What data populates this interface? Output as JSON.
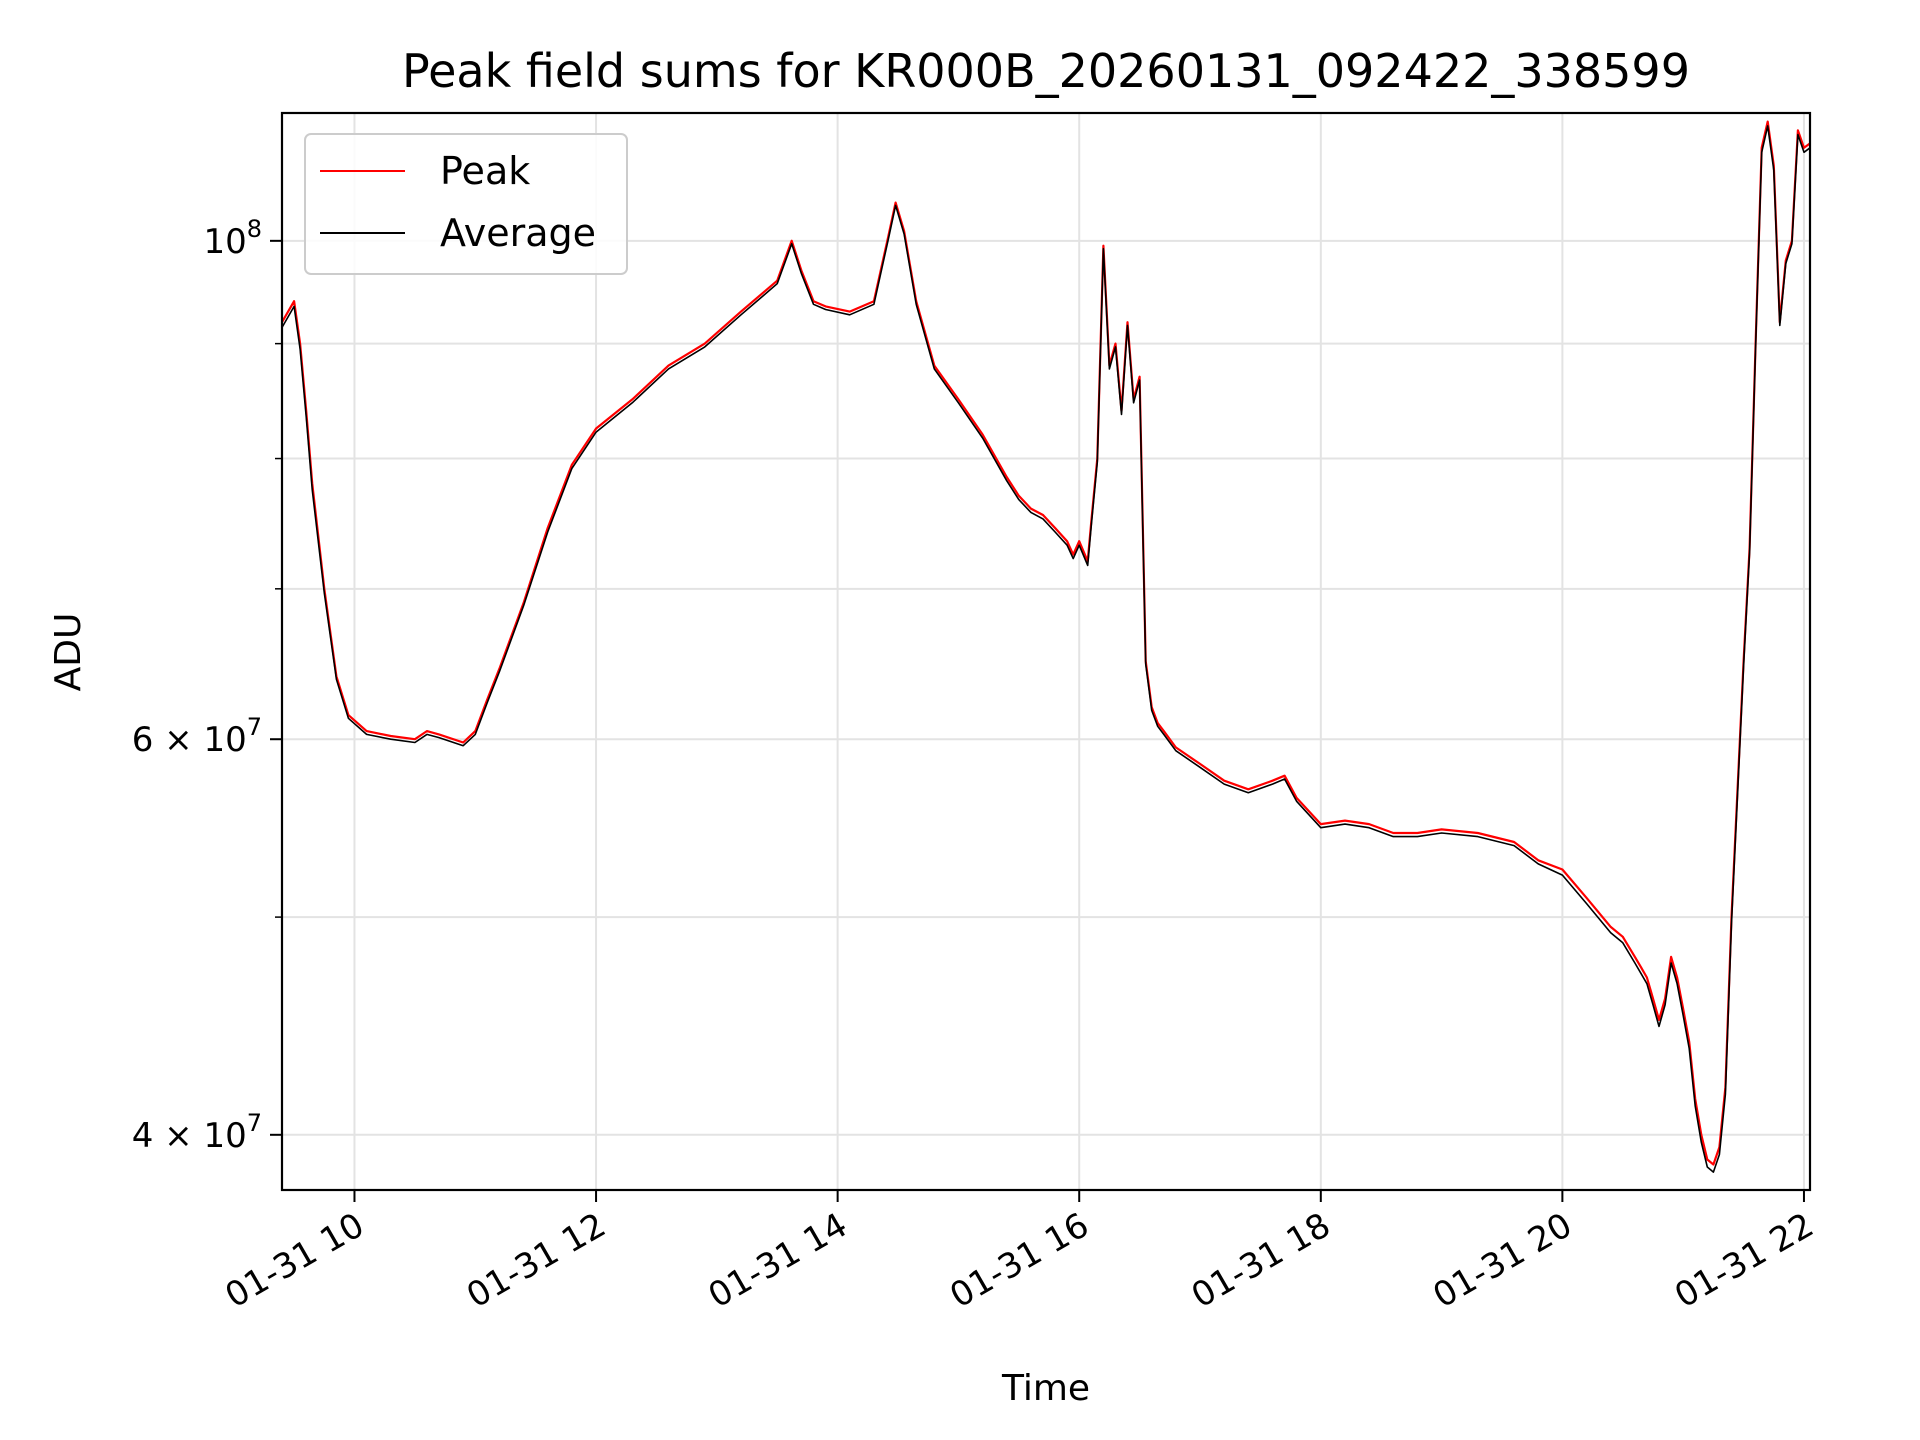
{
  "chart_data": {
    "type": "line",
    "title": "Peak field sums for KR000B_20260131_092422_338599",
    "xlabel": "Time",
    "ylabel": "ADU",
    "yscale": "log",
    "xlim": [
      9.4,
      22.05
    ],
    "ylim": [
      37800000,
      114000000
    ],
    "x_ticks": [
      {
        "value": 10,
        "label": "01-31 10"
      },
      {
        "value": 12,
        "label": "01-31 12"
      },
      {
        "value": 14,
        "label": "01-31 14"
      },
      {
        "value": 16,
        "label": "01-31 16"
      },
      {
        "value": 18,
        "label": "01-31 18"
      },
      {
        "value": 20,
        "label": "01-31 20"
      },
      {
        "value": 22,
        "label": "01-31 22"
      }
    ],
    "y_major_ticks": [
      {
        "value": 40000000,
        "base": "4 × 10",
        "exp": "7"
      },
      {
        "value": 60000000,
        "base": "6 × 10",
        "exp": "7"
      },
      {
        "value": 100000000,
        "base": "10",
        "exp": "8"
      }
    ],
    "y_minor_ticks": [
      50000000,
      70000000,
      80000000,
      90000000
    ],
    "legend": {
      "position": "upper-left",
      "entries": [
        "Peak",
        "Average"
      ]
    },
    "grid": true,
    "series": [
      {
        "name": "Peak",
        "color": "#ff0000",
        "x": [
          9.4,
          9.5,
          9.55,
          9.6,
          9.65,
          9.75,
          9.85,
          9.95,
          10.1,
          10.3,
          10.5,
          10.6,
          10.7,
          10.9,
          11.0,
          11.1,
          11.2,
          11.4,
          11.6,
          11.8,
          12.0,
          12.3,
          12.6,
          12.9,
          13.2,
          13.5,
          13.62,
          13.7,
          13.8,
          13.9,
          14.1,
          14.3,
          14.42,
          14.48,
          14.55,
          14.65,
          14.8,
          15.0,
          15.2,
          15.4,
          15.5,
          15.6,
          15.7,
          15.8,
          15.9,
          15.95,
          16.0,
          16.07,
          16.1,
          16.15,
          16.2,
          16.25,
          16.3,
          16.35,
          16.4,
          16.45,
          16.5,
          16.55,
          16.6,
          16.65,
          16.7,
          16.8,
          17.0,
          17.2,
          17.4,
          17.6,
          17.7,
          17.8,
          18.0,
          18.2,
          18.4,
          18.6,
          18.8,
          19.0,
          19.3,
          19.6,
          19.8,
          20.0,
          20.2,
          20.4,
          20.5,
          20.6,
          20.65,
          20.7,
          20.75,
          20.8,
          20.85,
          20.9,
          20.95,
          21.0,
          21.05,
          21.1,
          21.15,
          21.2,
          21.25,
          21.3,
          21.35,
          21.4,
          21.5,
          21.55,
          21.6,
          21.65,
          21.7,
          21.75,
          21.8,
          21.85,
          21.9,
          21.95,
          22.0,
          22.05
        ],
        "y": [
          92000000,
          94000000,
          90000000,
          84000000,
          78000000,
          70000000,
          64000000,
          61500000,
          60500000,
          60200000,
          60000000,
          60500000,
          60300000,
          59800000,
          60500000,
          62500000,
          64500000,
          69000000,
          74500000,
          79500000,
          82500000,
          85000000,
          88000000,
          90000000,
          93000000,
          96000000,
          100000000,
          97000000,
          94000000,
          93500000,
          93000000,
          94000000,
          100500000,
          104000000,
          101000000,
          94000000,
          88000000,
          85000000,
          82000000,
          78500000,
          77000000,
          76000000,
          75500000,
          74500000,
          73500000,
          72500000,
          73500000,
          72000000,
          75000000,
          80000000,
          99500000,
          88000000,
          90000000,
          84000000,
          92000000,
          85000000,
          87000000,
          65000000,
          62000000,
          61000000,
          60500000,
          59500000,
          58500000,
          57500000,
          57000000,
          57500000,
          57800000,
          56500000,
          55000000,
          55200000,
          55000000,
          54500000,
          54500000,
          54700000,
          54500000,
          54000000,
          53000000,
          52500000,
          51000000,
          49500000,
          49000000,
          48000000,
          47500000,
          47000000,
          46000000,
          45000000,
          46000000,
          48000000,
          47000000,
          45500000,
          44000000,
          41500000,
          40000000,
          39000000,
          38800000,
          39500000,
          42000000,
          50000000,
          65000000,
          73000000,
          90000000,
          110000000,
          113000000,
          108000000,
          92000000,
          98000000,
          100000000,
          112000000,
          110000000,
          110500000
        ]
      },
      {
        "name": "Average",
        "color": "#000000",
        "x": [
          9.4,
          9.5,
          9.55,
          9.6,
          9.65,
          9.75,
          9.85,
          9.95,
          10.1,
          10.3,
          10.5,
          10.6,
          10.7,
          10.9,
          11.0,
          11.1,
          11.2,
          11.4,
          11.6,
          11.8,
          12.0,
          12.3,
          12.6,
          12.9,
          13.2,
          13.5,
          13.62,
          13.7,
          13.8,
          13.9,
          14.1,
          14.3,
          14.42,
          14.48,
          14.55,
          14.65,
          14.8,
          15.0,
          15.2,
          15.4,
          15.5,
          15.6,
          15.7,
          15.8,
          15.9,
          15.95,
          16.0,
          16.07,
          16.1,
          16.15,
          16.2,
          16.25,
          16.3,
          16.35,
          16.4,
          16.45,
          16.5,
          16.55,
          16.6,
          16.65,
          16.7,
          16.8,
          17.0,
          17.2,
          17.4,
          17.6,
          17.7,
          17.8,
          18.0,
          18.2,
          18.4,
          18.6,
          18.8,
          19.0,
          19.3,
          19.6,
          19.8,
          20.0,
          20.2,
          20.4,
          20.5,
          20.6,
          20.65,
          20.7,
          20.75,
          20.8,
          20.85,
          20.9,
          20.95,
          21.0,
          21.05,
          21.1,
          21.15,
          21.2,
          21.25,
          21.3,
          21.35,
          21.4,
          21.5,
          21.55,
          21.6,
          21.65,
          21.7,
          21.75,
          21.8,
          21.85,
          21.9,
          21.95,
          22.0,
          22.05
        ],
        "y": [
          91500000,
          93500000,
          89500000,
          83500000,
          77500000,
          69700000,
          63800000,
          61300000,
          60300000,
          60000000,
          59800000,
          60300000,
          60100000,
          59600000,
          60300000,
          62300000,
          64300000,
          68800000,
          74200000,
          79200000,
          82200000,
          84700000,
          87700000,
          89700000,
          92700000,
          95700000,
          99700000,
          96700000,
          93700000,
          93200000,
          92700000,
          93700000,
          100200000,
          103700000,
          100700000,
          93700000,
          87700000,
          84700000,
          81700000,
          78200000,
          76700000,
          75700000,
          75200000,
          74200000,
          73200000,
          72200000,
          73200000,
          71700000,
          74700000,
          79700000,
          99200000,
          87700000,
          89700000,
          83700000,
          91700000,
          84700000,
          86700000,
          64800000,
          61800000,
          60800000,
          60300000,
          59300000,
          58300000,
          57300000,
          56800000,
          57300000,
          57600000,
          56300000,
          54800000,
          55000000,
          54800000,
          54300000,
          54300000,
          54500000,
          54300000,
          53800000,
          52800000,
          52200000,
          50700000,
          49200000,
          48700000,
          47700000,
          47200000,
          46700000,
          45700000,
          44700000,
          45700000,
          47700000,
          46700000,
          45200000,
          43700000,
          41200000,
          39700000,
          38700000,
          38500000,
          39200000,
          41700000,
          49700000,
          64700000,
          72700000,
          89700000,
          109500000,
          112500000,
          107500000,
          91700000,
          97700000,
          99700000,
          111500000,
          109500000,
          110000000
        ]
      }
    ]
  }
}
